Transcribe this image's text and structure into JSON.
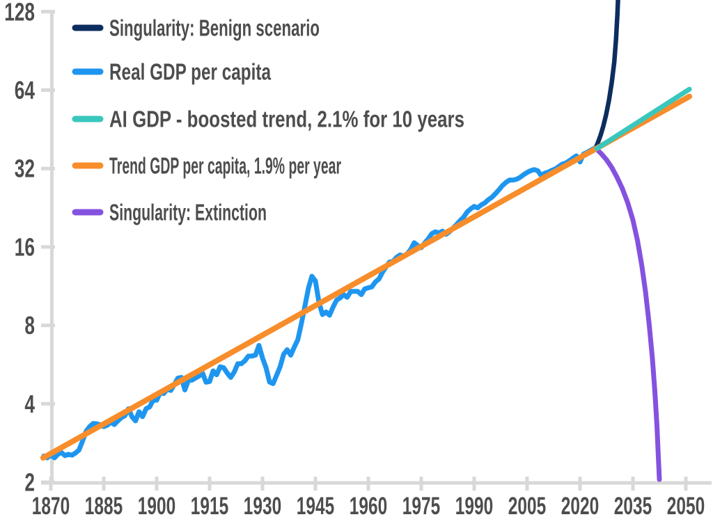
{
  "chart_data": {
    "type": "line",
    "title": "",
    "x_axis": {
      "label": "",
      "ticks": [
        1870,
        1885,
        1900,
        1915,
        1930,
        1945,
        1960,
        1975,
        1990,
        2005,
        2020,
        2035,
        2050
      ],
      "range": [
        1867,
        2052
      ],
      "grid": false
    },
    "y_axis": {
      "label": "",
      "scale": "log2",
      "ticks": [
        128,
        64,
        32,
        16,
        8,
        4,
        2
      ],
      "range": [
        2,
        128
      ],
      "grid": false
    },
    "colors": {
      "axis": "#d8d8d8",
      "tick_text": "#4d4d4d",
      "legend_text": "#4d4d4d",
      "background": "#ffffff"
    },
    "legend_position": "top-left",
    "series": [
      {
        "key": "singularity_benign",
        "label": "Singularity: Benign scenario",
        "color": "#0d2d5e",
        "points": [
          [
            2024.3,
            38.0
          ],
          [
            2025.0,
            40.0
          ],
          [
            2025.8,
            42.8
          ],
          [
            2026.6,
            46.5
          ],
          [
            2027.4,
            51.5
          ],
          [
            2028.2,
            58.5
          ],
          [
            2029.0,
            68.5
          ],
          [
            2029.7,
            82.0
          ],
          [
            2030.2,
            100.0
          ],
          [
            2030.6,
            125.0
          ],
          [
            2030.9,
            155.0
          ]
        ]
      },
      {
        "key": "real_gdp_per_capita",
        "label": "Real GDP per capita",
        "color": "#1e96f0",
        "points": [
          [
            1868,
            2.52
          ],
          [
            1869,
            2.48
          ],
          [
            1870,
            2.55
          ],
          [
            1871,
            2.48
          ],
          [
            1872,
            2.56
          ],
          [
            1873,
            2.6
          ],
          [
            1874,
            2.53
          ],
          [
            1875,
            2.56
          ],
          [
            1876,
            2.54
          ],
          [
            1877,
            2.59
          ],
          [
            1878,
            2.66
          ],
          [
            1879,
            2.88
          ],
          [
            1880,
            3.14
          ],
          [
            1881,
            3.27
          ],
          [
            1882,
            3.36
          ],
          [
            1883,
            3.35
          ],
          [
            1884,
            3.32
          ],
          [
            1885,
            3.27
          ],
          [
            1886,
            3.31
          ],
          [
            1887,
            3.4
          ],
          [
            1888,
            3.33
          ],
          [
            1889,
            3.44
          ],
          [
            1890,
            3.54
          ],
          [
            1891,
            3.6
          ],
          [
            1892,
            3.83
          ],
          [
            1893,
            3.57
          ],
          [
            1894,
            3.44
          ],
          [
            1895,
            3.73
          ],
          [
            1896,
            3.57
          ],
          [
            1897,
            3.83
          ],
          [
            1898,
            3.89
          ],
          [
            1899,
            4.13
          ],
          [
            1900,
            4.13
          ],
          [
            1901,
            4.42
          ],
          [
            1902,
            4.38
          ],
          [
            1903,
            4.55
          ],
          [
            1904,
            4.5
          ],
          [
            1905,
            4.74
          ],
          [
            1906,
            5.02
          ],
          [
            1907,
            5.05
          ],
          [
            1908,
            4.52
          ],
          [
            1909,
            4.92
          ],
          [
            1910,
            4.93
          ],
          [
            1911,
            5.02
          ],
          [
            1912,
            5.11
          ],
          [
            1913,
            5.25
          ],
          [
            1914,
            4.84
          ],
          [
            1915,
            4.87
          ],
          [
            1916,
            5.35
          ],
          [
            1917,
            5.17
          ],
          [
            1918,
            5.55
          ],
          [
            1919,
            5.5
          ],
          [
            1920,
            5.25
          ],
          [
            1921,
            5.05
          ],
          [
            1922,
            5.3
          ],
          [
            1923,
            5.7
          ],
          [
            1924,
            5.7
          ],
          [
            1925,
            5.85
          ],
          [
            1926,
            6.1
          ],
          [
            1927,
            6.1
          ],
          [
            1928,
            6.15
          ],
          [
            1929,
            6.7
          ],
          [
            1930,
            6.0
          ],
          [
            1931,
            5.5
          ],
          [
            1932,
            4.85
          ],
          [
            1933,
            4.78
          ],
          [
            1934,
            5.15
          ],
          [
            1935,
            5.55
          ],
          [
            1936,
            6.2
          ],
          [
            1937,
            6.45
          ],
          [
            1938,
            6.15
          ],
          [
            1939,
            6.6
          ],
          [
            1940,
            7.05
          ],
          [
            1941,
            8.1
          ],
          [
            1942,
            9.45
          ],
          [
            1943,
            11.1
          ],
          [
            1944,
            12.35
          ],
          [
            1945,
            11.85
          ],
          [
            1946,
            9.8
          ],
          [
            1947,
            8.8
          ],
          [
            1948,
            9.0
          ],
          [
            1949,
            8.75
          ],
          [
            1950,
            9.4
          ],
          [
            1951,
            10.0
          ],
          [
            1952,
            10.2
          ],
          [
            1953,
            10.5
          ],
          [
            1954,
            10.25
          ],
          [
            1955,
            10.8
          ],
          [
            1956,
            10.8
          ],
          [
            1957,
            10.8
          ],
          [
            1958,
            10.5
          ],
          [
            1959,
            11.05
          ],
          [
            1960,
            11.15
          ],
          [
            1961,
            11.25
          ],
          [
            1962,
            11.75
          ],
          [
            1963,
            12.05
          ],
          [
            1964,
            12.8
          ],
          [
            1965,
            13.4
          ],
          [
            1966,
            14.0
          ],
          [
            1967,
            14.1
          ],
          [
            1968,
            14.6
          ],
          [
            1969,
            14.9
          ],
          [
            1970,
            14.75
          ],
          [
            1971,
            15.05
          ],
          [
            1972,
            15.65
          ],
          [
            1973,
            16.6
          ],
          [
            1974,
            16.2
          ],
          [
            1975,
            15.9
          ],
          [
            1976,
            16.6
          ],
          [
            1977,
            17.2
          ],
          [
            1978,
            18.0
          ],
          [
            1979,
            18.3
          ],
          [
            1980,
            18.1
          ],
          [
            1981,
            18.4
          ],
          [
            1982,
            17.9
          ],
          [
            1983,
            18.3
          ],
          [
            1984,
            18.9
          ],
          [
            1985,
            19.5
          ],
          [
            1986,
            20.2
          ],
          [
            1987,
            20.8
          ],
          [
            1988,
            21.8
          ],
          [
            1989,
            22.4
          ],
          [
            1990,
            22.9
          ],
          [
            1991,
            22.6
          ],
          [
            1992,
            23.2
          ],
          [
            1993,
            23.6
          ],
          [
            1994,
            24.3
          ],
          [
            1995,
            24.8
          ],
          [
            1996,
            25.6
          ],
          [
            1997,
            26.5
          ],
          [
            1998,
            27.5
          ],
          [
            1999,
            28.3
          ],
          [
            2000,
            28.9
          ],
          [
            2001,
            28.9
          ],
          [
            2002,
            29.1
          ],
          [
            2003,
            29.6
          ],
          [
            2004,
            30.3
          ],
          [
            2005,
            30.9
          ],
          [
            2006,
            31.4
          ],
          [
            2007,
            31.7
          ],
          [
            2008,
            31.4
          ],
          [
            2009,
            30.1
          ],
          [
            2010,
            30.7
          ],
          [
            2011,
            31.0
          ],
          [
            2012,
            31.5
          ],
          [
            2013,
            31.9
          ],
          [
            2014,
            32.6
          ],
          [
            2015,
            33.3
          ],
          [
            2016,
            33.6
          ],
          [
            2017,
            34.3
          ],
          [
            2018,
            35.1
          ],
          [
            2019,
            35.8
          ],
          [
            2020,
            33.9
          ],
          [
            2021,
            36.4
          ],
          [
            2022,
            36.9
          ],
          [
            2023,
            37.6
          ],
          [
            2024,
            38.2
          ]
        ]
      },
      {
        "key": "ai_boosted_trend",
        "label": "AI GDP - boosted trend, 2.1% for 10 years",
        "color": "#39c7bd",
        "points": [
          [
            2024.8,
            38.2
          ],
          [
            2051,
            64.5
          ]
        ]
      },
      {
        "key": "trend_gdp",
        "label": "Trend GDP per capita, 1.9% per year",
        "color": "#f78d2b",
        "points": [
          [
            1867.8,
            2.48
          ],
          [
            2051,
            60.5
          ]
        ]
      },
      {
        "key": "singularity_extinction",
        "label": "Singularity: Extinction",
        "color": "#8552df",
        "points": [
          [
            2024.8,
            37.9
          ],
          [
            2026.0,
            36.5
          ],
          [
            2027.5,
            34.6
          ],
          [
            2029.0,
            32.3
          ],
          [
            2030.5,
            29.6
          ],
          [
            2032.0,
            26.8
          ],
          [
            2033.5,
            23.7
          ],
          [
            2035.0,
            20.3
          ],
          [
            2036.3,
            16.9
          ],
          [
            2037.5,
            13.6
          ],
          [
            2038.6,
            10.7
          ],
          [
            2039.6,
            8.1
          ],
          [
            2040.5,
            6.0
          ],
          [
            2041.2,
            4.5
          ],
          [
            2041.8,
            3.3
          ],
          [
            2042.2,
            2.5
          ],
          [
            2042.5,
            2.05
          ]
        ]
      }
    ]
  }
}
